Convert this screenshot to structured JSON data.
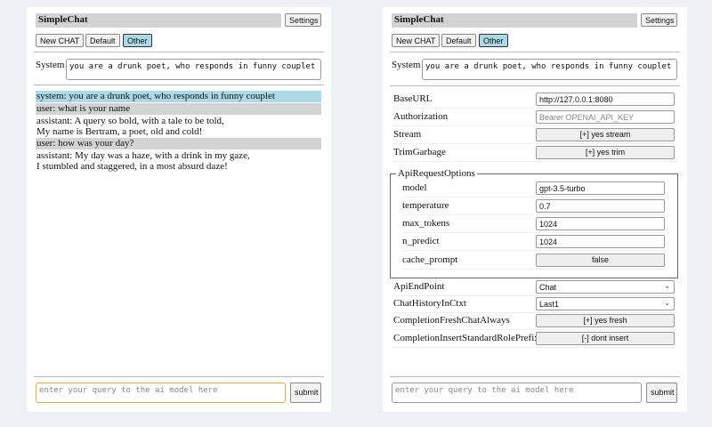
{
  "app_title": "SimpleChat",
  "settings_label": "Settings",
  "modes": {
    "new_chat": "New CHAT",
    "default": "Default",
    "other": "Other"
  },
  "system": {
    "label": "System",
    "value": "you are a drunk poet, who responds in funny couplet"
  },
  "messages": [
    {
      "role": "system",
      "lines": [
        "system: you are a drunk poet, who responds in funny couplet"
      ]
    },
    {
      "role": "user",
      "lines": [
        "user: what is your name"
      ]
    },
    {
      "role": "assistant",
      "lines": [
        "assistant: A query so bold, with a tale to be told,",
        "My name is Bertram, a poet, old and cold!"
      ]
    },
    {
      "role": "user",
      "lines": [
        "user: how was your day?"
      ]
    },
    {
      "role": "assistant",
      "lines": [
        "assistant: My day was a haze, with a drink in my gaze,",
        "I stumbled and staggered, in a most absurd daze!"
      ]
    }
  ],
  "query": {
    "placeholder": "enter your query to the ai model here",
    "submit": "submit"
  },
  "settings": {
    "base_url": {
      "label": "BaseURL",
      "value": "http://127.0.0.1:8080"
    },
    "authorization": {
      "label": "Authorization",
      "placeholder": "Bearer OPENAI_API_KEY"
    },
    "stream": {
      "label": "Stream",
      "value": "[+] yes stream"
    },
    "trim_garbage": {
      "label": "TrimGarbage",
      "value": "[+] yes trim"
    },
    "api_request_options": {
      "legend": "ApiRequestOptions",
      "model": {
        "label": "model",
        "value": "gpt-3.5-turbo"
      },
      "temperature": {
        "label": "temperature",
        "value": "0.7"
      },
      "max_tokens": {
        "label": "max_tokens",
        "value": "1024"
      },
      "n_predict": {
        "label": "n_predict",
        "value": "1024"
      },
      "cache_prompt": {
        "label": "cache_prompt",
        "value": "false"
      }
    },
    "api_endpoint": {
      "label": "ApiEndPoint",
      "value": "Chat"
    },
    "chat_history": {
      "label": "ChatHistoryInCtxt",
      "value": "Last1"
    },
    "fresh_chat": {
      "label": "CompletionFreshChatAlways",
      "value": "[+] yes fresh"
    },
    "role_prefix": {
      "label": "CompletionInsertStandardRolePrefix",
      "value": "[-] dont insert"
    }
  }
}
